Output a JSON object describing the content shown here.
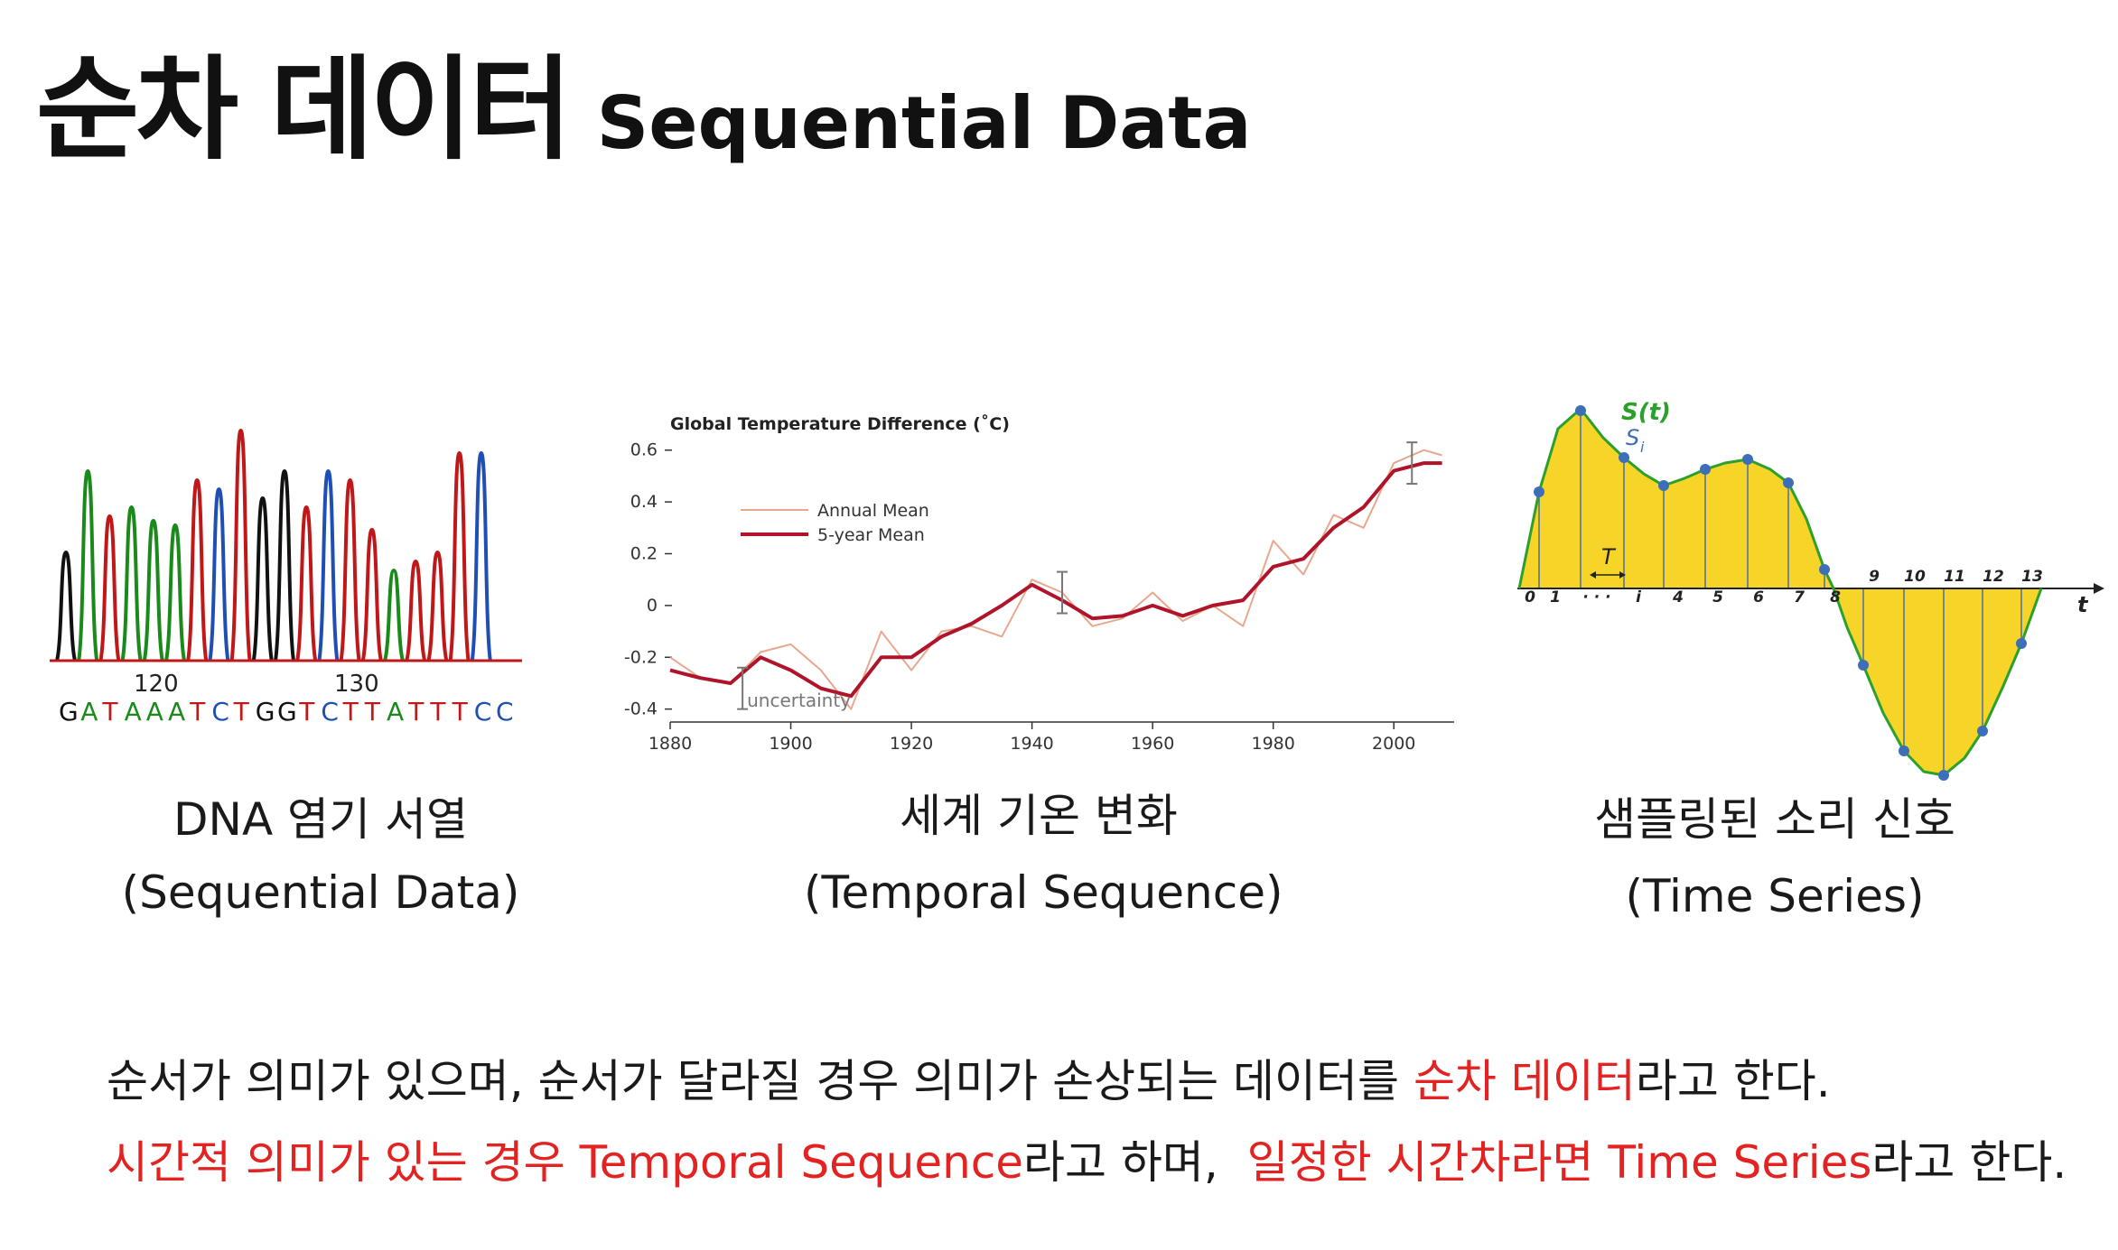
{
  "title": {
    "korean": "순차 데이터",
    "english": "Sequential Data"
  },
  "figures": {
    "dna": {
      "tick_labels": [
        "120",
        "130"
      ],
      "bases": [
        "G",
        "A",
        "T",
        "A",
        "A",
        "A",
        "T",
        "C",
        "T",
        "G",
        "G",
        "T",
        "C",
        "T",
        "T",
        "A",
        "T",
        "T",
        "T",
        "C",
        "C"
      ],
      "colors": {
        "A": "#1a8a1a",
        "C": "#1f4fb5",
        "G": "#111111",
        "T": "#c01818"
      },
      "caption_line1": "DNA 염기 서열",
      "caption_line2": "(Sequential Data)"
    },
    "temperature": {
      "caption_line1": "세계 기온 변화",
      "caption_line2": "(Temporal Sequence)"
    },
    "signal": {
      "labels": {
        "curve": "S(t)",
        "sample": "S",
        "sample_sub": "i",
        "period": "T",
        "axis": "t"
      },
      "sample_labels": [
        "0",
        "1",
        "· · ·",
        "i",
        "4",
        "5",
        "6",
        "7",
        "8",
        "9",
        "10",
        "11",
        "12",
        "13"
      ],
      "colors": {
        "fill": "#f7d428",
        "curve": "#2ca02c",
        "points": "#3d6fb8"
      },
      "caption_line1": "샘플링된 소리 신호",
      "caption_line2": "(Time Series)"
    }
  },
  "chart_data": {
    "type": "line",
    "title": "Global Temperature Difference (˚C)",
    "xlabel": "",
    "ylabel": "",
    "xlim": [
      1880,
      2010
    ],
    "ylim": [
      -0.45,
      0.62
    ],
    "x_ticks": [
      "1880",
      "1900",
      "1920",
      "1940",
      "1960",
      "1980",
      "2000"
    ],
    "y_ticks": [
      "0.6",
      "0.4",
      "0.2",
      "0",
      "-0.2",
      "-0.4"
    ],
    "legend": [
      "Annual Mean",
      "5-year Mean"
    ],
    "annotation": "uncertainty",
    "x": [
      1880,
      1885,
      1890,
      1895,
      1900,
      1905,
      1910,
      1915,
      1920,
      1925,
      1930,
      1935,
      1940,
      1945,
      1950,
      1955,
      1960,
      1965,
      1970,
      1975,
      1980,
      1985,
      1990,
      1995,
      2000,
      2005,
      2008
    ],
    "series": [
      {
        "name": "Annual Mean",
        "color": "#e8a88e",
        "values": [
          -0.2,
          -0.28,
          -0.3,
          -0.18,
          -0.15,
          -0.25,
          -0.4,
          -0.1,
          -0.25,
          -0.1,
          -0.08,
          -0.12,
          0.1,
          0.05,
          -0.08,
          -0.05,
          0.05,
          -0.06,
          0.0,
          -0.08,
          0.25,
          0.12,
          0.35,
          0.3,
          0.55,
          0.6,
          0.58
        ]
      },
      {
        "name": "5-year Mean",
        "color": "#b0142a",
        "values": [
          -0.25,
          -0.28,
          -0.3,
          -0.2,
          -0.25,
          -0.32,
          -0.35,
          -0.2,
          -0.2,
          -0.12,
          -0.07,
          0.0,
          0.08,
          0.02,
          -0.05,
          -0.04,
          0.0,
          -0.04,
          0.0,
          0.02,
          0.15,
          0.18,
          0.3,
          0.38,
          0.52,
          0.55,
          0.55
        ]
      }
    ]
  },
  "body": {
    "line1": {
      "plain": "순서가 의미가 있으며, 순서가 달라질 경우 의미가 손상되는 데이터를 ",
      "highlight": "순차 데이터",
      "suffix": "라고 한다."
    },
    "line2": {
      "highlight1": "시간적 의미가 있는 경우 Temporal Sequence",
      "middle": "라고 하며,  ",
      "highlight2": "일정한 시간차라면 Time Series",
      "suffix": "라고 한다."
    }
  }
}
